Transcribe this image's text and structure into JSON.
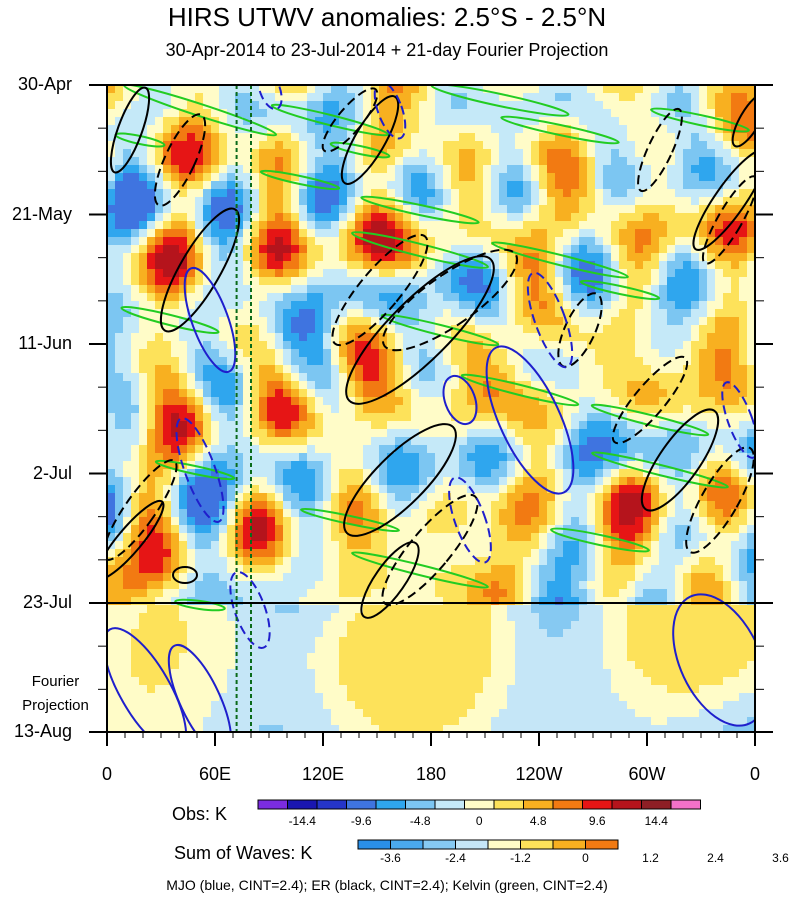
{
  "title": "HIRS UTWV anomalies: 2.5°S - 2.5°N",
  "subtitle": "30-Apr-2014 to 23-Jul-2014 + 21-day Fourier Projection",
  "chart_data": {
    "type": "heatmap",
    "x_axis": {
      "ticks": [
        "0",
        "60E",
        "120E",
        "180",
        "120W",
        "60W",
        "0"
      ],
      "range_deg": [
        0,
        360
      ]
    },
    "y_axis": {
      "ticks": [
        "30-Apr",
        "21-May",
        "11-Jun",
        "2-Jul",
        "23-Jul",
        "13-Aug"
      ],
      "reversed": true
    },
    "projection_label": "Fourier Projection",
    "observation_end": "23-Jul",
    "obs_colorbar": {
      "label": "Obs: K",
      "tick_labels": [
        "-14.4",
        "-9.6",
        "-4.8",
        "0",
        "4.8",
        "9.6",
        "14.4"
      ],
      "colors": [
        "#7b2ce0",
        "#1a16b0",
        "#2535c9",
        "#3f74e0",
        "#2fa6ee",
        "#7cc6f2",
        "#c5e9f8",
        "#fffcc8",
        "#fde25a",
        "#f8b020",
        "#f27a12",
        "#e61515",
        "#b5141c",
        "#8e1f25",
        "#f271c9"
      ]
    },
    "waves_colorbar": {
      "label": "Sum of Waves: K",
      "tick_labels": [
        "-3.6",
        "-2.4",
        "-1.2",
        "0",
        "1.2",
        "2.4",
        "3.6"
      ],
      "colors": [
        "#2a8fe8",
        "#4aa9ee",
        "#86c9f2",
        "#c5e6f7",
        "#fffcc8",
        "#fde25a",
        "#f8b020",
        "#f27a12"
      ]
    },
    "contour_legend": "MJO (blue, CINT=2.4); ER (black, CINT=2.4); Kelvin (green, CINT=2.4)",
    "series": [
      {
        "name": "MJO",
        "color": "#1f1fcc"
      },
      {
        "name": "ER",
        "color": "#000000"
      },
      {
        "name": "Kelvin",
        "color": "#22cc22"
      }
    ],
    "reference_lines_deg": [
      72,
      80
    ]
  }
}
